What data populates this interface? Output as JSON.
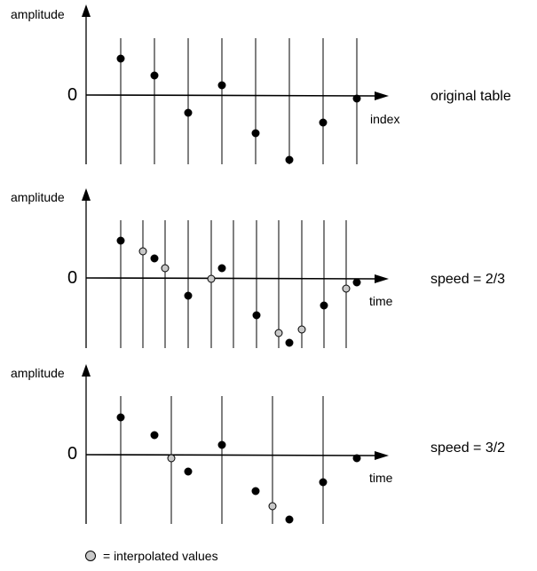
{
  "panels": [
    {
      "amplitude_label": "amplitude",
      "zero_label": "0",
      "axis_label": "index",
      "side_label": "original table"
    },
    {
      "amplitude_label": "amplitude",
      "zero_label": "0",
      "axis_label": "time",
      "side_label": "speed = 2/3"
    },
    {
      "amplitude_label": "amplitude",
      "zero_label": "0",
      "axis_label": "time",
      "side_label": "speed = 3/2"
    }
  ],
  "legend": {
    "label": "=  interpolated values",
    "symbol_color": "#c8c8c8"
  },
  "colors": {
    "sample": "#000000",
    "interpolated": "#c8c8c8"
  }
}
